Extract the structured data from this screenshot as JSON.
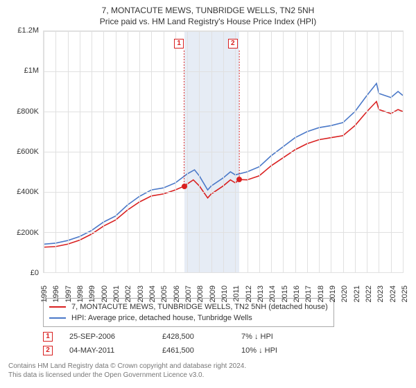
{
  "title": "7, MONTACUTE MEWS, TUNBRIDGE WELLS, TN2 5NH",
  "subtitle": "Price paid vs. HM Land Registry's House Price Index (HPI)",
  "chart": {
    "type": "line",
    "background_color": "#ffffff",
    "grid_color": "#e0e0e0",
    "shade_color": "#e6ecf5",
    "xlim": [
      1995,
      2025
    ],
    "ylim": [
      0,
      1200000
    ],
    "ytick_step": 200000,
    "yticklabels": [
      "£0",
      "£200K",
      "£400K",
      "£600K",
      "£800K",
      "£1M",
      "£1.2M"
    ],
    "xticks": [
      1995,
      1996,
      1997,
      1998,
      1999,
      2000,
      2001,
      2002,
      2003,
      2004,
      2005,
      2006,
      2007,
      2008,
      2009,
      2010,
      2011,
      2012,
      2013,
      2014,
      2015,
      2016,
      2017,
      2018,
      2019,
      2020,
      2021,
      2022,
      2023,
      2024,
      2025
    ],
    "label_fontsize": 11,
    "line_width": 1.6,
    "series": [
      {
        "name": "7, MONTACUTE MEWS, TUNBRIDGE WELLS, TN2 5NH (detached house)",
        "color": "#d92020",
        "data": [
          [
            1995,
            125000
          ],
          [
            1996,
            128000
          ],
          [
            1997,
            140000
          ],
          [
            1998,
            160000
          ],
          [
            1999,
            190000
          ],
          [
            2000,
            230000
          ],
          [
            2001,
            260000
          ],
          [
            2002,
            310000
          ],
          [
            2003,
            350000
          ],
          [
            2004,
            380000
          ],
          [
            2005,
            390000
          ],
          [
            2006,
            410000
          ],
          [
            2006.73,
            428500
          ],
          [
            2007,
            440000
          ],
          [
            2007.5,
            460000
          ],
          [
            2008,
            430000
          ],
          [
            2008.7,
            370000
          ],
          [
            2009,
            390000
          ],
          [
            2010,
            430000
          ],
          [
            2010.6,
            460000
          ],
          [
            2011,
            445000
          ],
          [
            2011.34,
            461500
          ],
          [
            2012,
            460000
          ],
          [
            2013,
            480000
          ],
          [
            2014,
            530000
          ],
          [
            2015,
            570000
          ],
          [
            2016,
            610000
          ],
          [
            2017,
            640000
          ],
          [
            2018,
            660000
          ],
          [
            2019,
            670000
          ],
          [
            2020,
            680000
          ],
          [
            2021,
            730000
          ],
          [
            2022,
            800000
          ],
          [
            2022.8,
            850000
          ],
          [
            2023,
            810000
          ],
          [
            2024,
            790000
          ],
          [
            2024.6,
            810000
          ],
          [
            2025,
            800000
          ]
        ]
      },
      {
        "name": "HPI: Average price, detached house, Tunbridge Wells",
        "color": "#4a78c8",
        "data": [
          [
            1995,
            140000
          ],
          [
            1996,
            145000
          ],
          [
            1997,
            158000
          ],
          [
            1998,
            178000
          ],
          [
            1999,
            208000
          ],
          [
            2000,
            250000
          ],
          [
            2001,
            280000
          ],
          [
            2002,
            335000
          ],
          [
            2003,
            378000
          ],
          [
            2004,
            410000
          ],
          [
            2005,
            420000
          ],
          [
            2006,
            445000
          ],
          [
            2007,
            490000
          ],
          [
            2007.6,
            510000
          ],
          [
            2008,
            480000
          ],
          [
            2008.7,
            410000
          ],
          [
            2009,
            430000
          ],
          [
            2010,
            470000
          ],
          [
            2010.6,
            500000
          ],
          [
            2011,
            485000
          ],
          [
            2012,
            500000
          ],
          [
            2013,
            525000
          ],
          [
            2014,
            580000
          ],
          [
            2015,
            625000
          ],
          [
            2016,
            670000
          ],
          [
            2017,
            700000
          ],
          [
            2018,
            720000
          ],
          [
            2019,
            730000
          ],
          [
            2020,
            745000
          ],
          [
            2021,
            800000
          ],
          [
            2022,
            880000
          ],
          [
            2022.8,
            940000
          ],
          [
            2023,
            890000
          ],
          [
            2024,
            870000
          ],
          [
            2024.6,
            900000
          ],
          [
            2025,
            880000
          ]
        ]
      }
    ],
    "shaded_region": [
      2006.73,
      2011.34
    ],
    "markers": [
      {
        "n": "1",
        "x_top": 2006.3,
        "x_dot": 2006.73,
        "y_dot": 428500,
        "color": "#d92020"
      },
      {
        "n": "2",
        "x_top": 2010.8,
        "x_dot": 2011.34,
        "y_dot": 461500,
        "color": "#d92020"
      }
    ]
  },
  "legend": [
    {
      "label": "7, MONTACUTE MEWS, TUNBRIDGE WELLS, TN2 5NH (detached house)",
      "color": "#d92020"
    },
    {
      "label": "HPI: Average price, detached house, Tunbridge Wells",
      "color": "#4a78c8"
    }
  ],
  "datapoints": [
    {
      "n": "1",
      "color": "#d92020",
      "date": "25-SEP-2006",
      "price": "£428,500",
      "delta": "7% ↓ HPI"
    },
    {
      "n": "2",
      "color": "#d92020",
      "date": "04-MAY-2011",
      "price": "£461,500",
      "delta": "10% ↓ HPI"
    }
  ],
  "footer_line1": "Contains HM Land Registry data © Crown copyright and database right 2024.",
  "footer_line2": "This data is licensed under the Open Government Licence v3.0."
}
